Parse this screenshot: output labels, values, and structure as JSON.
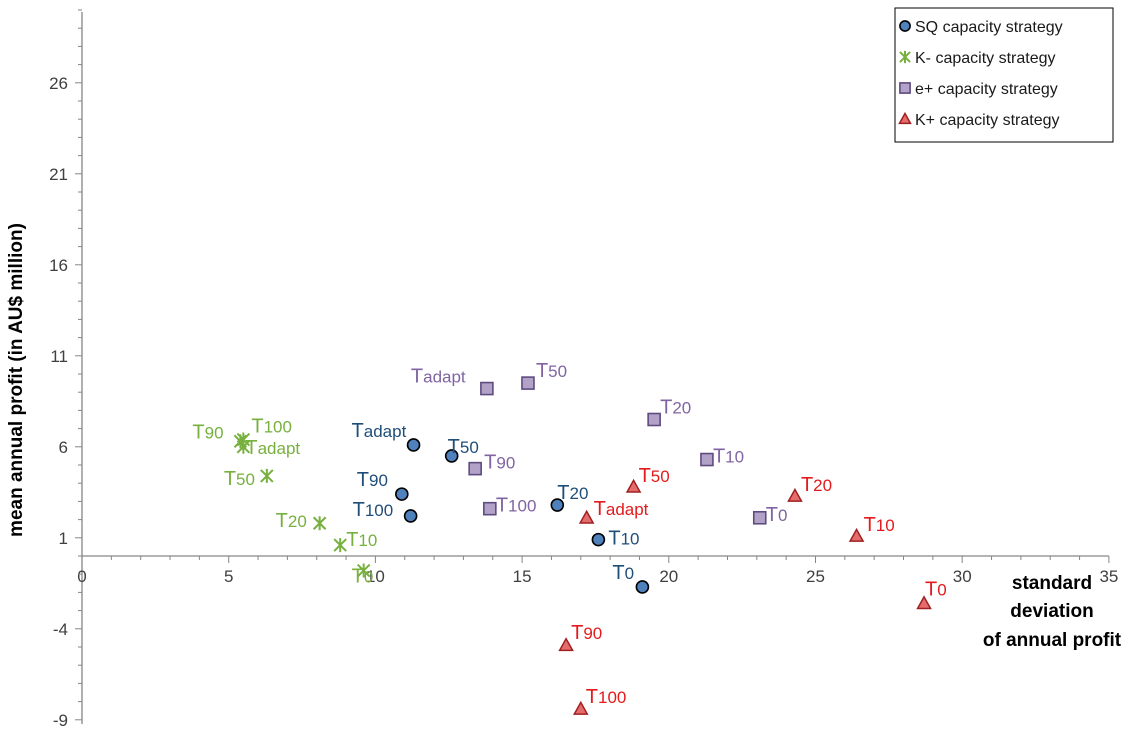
{
  "chart_data": {
    "type": "scatter",
    "xlabel": [
      "standard",
      "deviation",
      "of annual profit"
    ],
    "ylabel": "mean annual profit (in AU$ million)",
    "xlim": [
      0,
      35
    ],
    "ylim": [
      -9,
      31
    ],
    "x_ticks": [
      0,
      5,
      10,
      15,
      20,
      25,
      30,
      35
    ],
    "y_ticks": [
      -9,
      -4,
      1,
      6,
      11,
      16,
      21,
      26
    ],
    "grid": false,
    "legend_position": "top-right",
    "series": [
      {
        "name": "SQ capacity strategy",
        "marker": "circle",
        "color": "#4f81bd",
        "label_color": "#1f4e79",
        "points": [
          {
            "label": "T",
            "sub": "adapt",
            "x": 11.3,
            "y": 6.1
          },
          {
            "label": "T",
            "sub": "50",
            "x": 12.6,
            "y": 5.5
          },
          {
            "label": "T",
            "sub": "90",
            "x": 10.9,
            "y": 3.4
          },
          {
            "label": "T",
            "sub": "100",
            "x": 11.2,
            "y": 2.2
          },
          {
            "label": "T",
            "sub": "20",
            "x": 16.2,
            "y": 2.8
          },
          {
            "label": "T",
            "sub": "10",
            "x": 17.6,
            "y": 0.9
          },
          {
            "label": "T",
            "sub": "0",
            "x": 19.1,
            "y": -1.7
          }
        ]
      },
      {
        "name": "K-  capacity strategy",
        "marker": "asterisk",
        "color": "#77b03f",
        "label_color": "#77b03f",
        "points": [
          {
            "label": "T",
            "sub": "90",
            "x": 5.4,
            "y": 6.3
          },
          {
            "label": "T",
            "sub": "100",
            "x": 5.5,
            "y": 6.4
          },
          {
            "label": "T",
            "sub": "adapt",
            "x": 5.5,
            "y": 6.0
          },
          {
            "label": "T",
            "sub": "50",
            "x": 6.3,
            "y": 4.4
          },
          {
            "label": "T",
            "sub": "20",
            "x": 8.1,
            "y": 1.8
          },
          {
            "label": "T",
            "sub": "10",
            "x": 8.8,
            "y": 0.6
          },
          {
            "label": "T",
            "sub": "0",
            "x": 9.6,
            "y": -0.8
          }
        ]
      },
      {
        "name": "e+ capacity strategy",
        "marker": "square",
        "color": "#b3a2c7",
        "label_color": "#8064a2",
        "points": [
          {
            "label": "T",
            "sub": "adapt",
            "x": 13.8,
            "y": 9.2
          },
          {
            "label": "T",
            "sub": "50",
            "x": 15.2,
            "y": 9.5
          },
          {
            "label": "T",
            "sub": "20",
            "x": 19.5,
            "y": 7.5
          },
          {
            "label": "T",
            "sub": "90",
            "x": 13.4,
            "y": 4.8
          },
          {
            "label": "T",
            "sub": "10",
            "x": 21.3,
            "y": 5.3
          },
          {
            "label": "T",
            "sub": "100",
            "x": 13.9,
            "y": 2.6
          },
          {
            "label": "T",
            "sub": "0",
            "x": 23.1,
            "y": 2.1
          }
        ]
      },
      {
        "name": "K+ capacity strategy",
        "marker": "triangle",
        "color": "#e46c6c",
        "label_color": "#e41a1c",
        "points": [
          {
            "label": "T",
            "sub": "50",
            "x": 18.8,
            "y": 3.8
          },
          {
            "label": "T",
            "sub": "20",
            "x": 24.3,
            "y": 3.3
          },
          {
            "label": "T",
            "sub": "adapt",
            "x": 17.2,
            "y": 2.1
          },
          {
            "label": "T",
            "sub": "10",
            "x": 26.4,
            "y": 1.1
          },
          {
            "label": "T",
            "sub": "0",
            "x": 28.7,
            "y": -2.6
          },
          {
            "label": "T",
            "sub": "90",
            "x": 16.5,
            "y": -4.9
          },
          {
            "label": "T",
            "sub": "100",
            "x": 17.0,
            "y": -8.4
          }
        ]
      }
    ]
  }
}
